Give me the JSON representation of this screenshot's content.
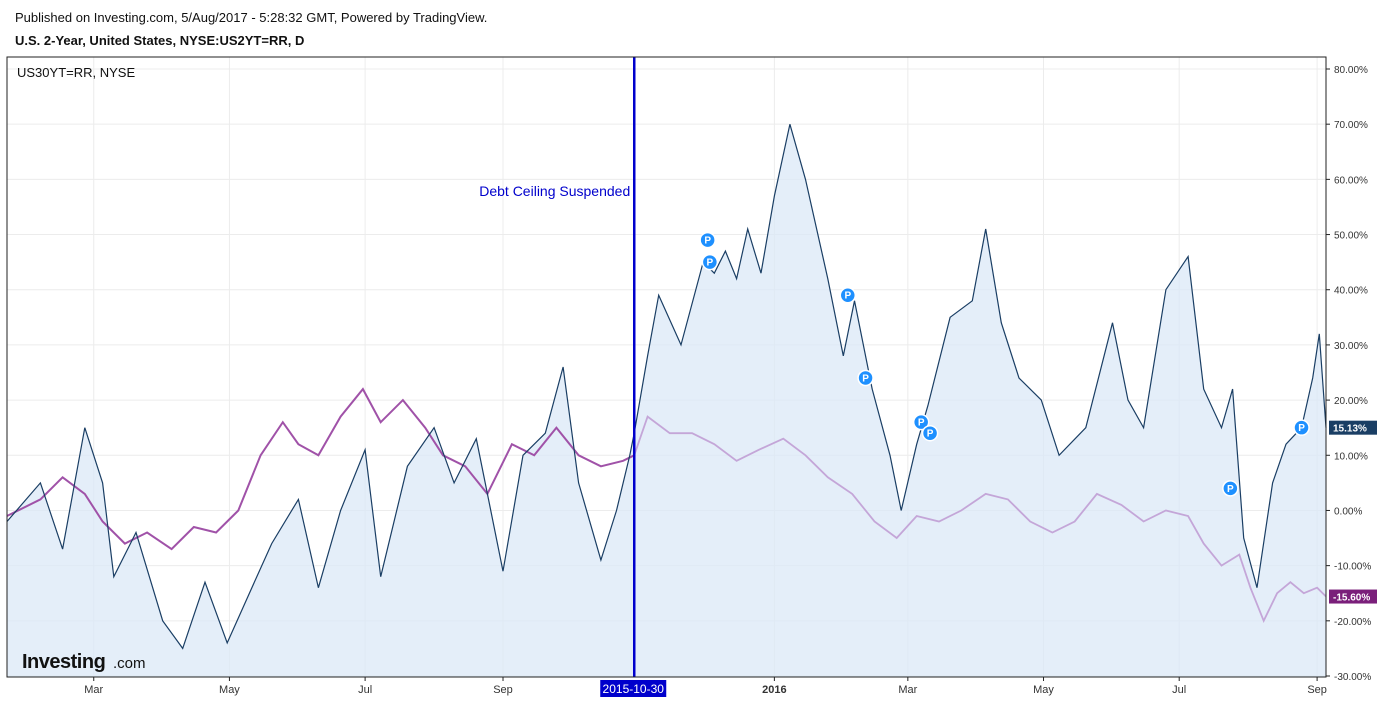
{
  "header": {
    "published": "Published on Investing.com, 5/Aug/2017 - 5:28:32 GMT, Powered by TradingView.",
    "title": "U.S. 2-Year, United States, NYSE:US2YT=RR, D"
  },
  "legend": {
    "compare_symbol": "US30YT=RR, NYSE"
  },
  "annotation": {
    "text": "Debt Ceiling Suspended",
    "date_label": "2015-10-30",
    "color": "#0000cc"
  },
  "logo": {
    "brand": "Investing",
    "suffix": ".com"
  },
  "colors": {
    "primary": "#1a3e64",
    "area": "#dbe8f7",
    "compare_before": "#a052a8",
    "compare_after": "#c4a6d8",
    "primary_badge": "#1a3e64",
    "compare_badge": "#7a1f7a",
    "marker": "#1e90ff"
  },
  "chart_data": {
    "type": "line",
    "y_unit": "%",
    "ylim": [
      -30,
      82
    ],
    "y_ticks": [
      "80.00%",
      "70.00%",
      "60.00%",
      "50.00%",
      "40.00%",
      "30.00%",
      "20.00%",
      "10.00%",
      "0.00%",
      "-10.00%",
      "-20.00%",
      "-30.00%"
    ],
    "y_tick_values": [
      80,
      70,
      60,
      50,
      40,
      30,
      20,
      10,
      0,
      -10,
      -20,
      -30
    ],
    "x_ticks": [
      "Mar",
      "May",
      "Jul",
      "Sep",
      "2016",
      "Mar",
      "May",
      "Jul",
      "Sep"
    ],
    "x_tick_dates": [
      "2015-03-01",
      "2015-05-01",
      "2015-07-01",
      "2015-09-01",
      "2016-01-01",
      "2016-03-01",
      "2016-05-01",
      "2016-07-01",
      "2016-09-01"
    ],
    "x_range": [
      "2015-01-21",
      "2016-09-05"
    ],
    "event_date": "2015-10-30",
    "series": [
      {
        "name": "U.S. 2-Year",
        "last_label": "15.13%",
        "points": [
          [
            "2015-01-21",
            -2
          ],
          [
            "2015-02-05",
            5
          ],
          [
            "2015-02-15",
            -7
          ],
          [
            "2015-02-25",
            15
          ],
          [
            "2015-03-05",
            5
          ],
          [
            "2015-03-10",
            -12
          ],
          [
            "2015-03-20",
            -4
          ],
          [
            "2015-04-01",
            -20
          ],
          [
            "2015-04-10",
            -25
          ],
          [
            "2015-04-20",
            -13
          ],
          [
            "2015-04-30",
            -24
          ],
          [
            "2015-05-10",
            -15
          ],
          [
            "2015-05-20",
            -6
          ],
          [
            "2015-06-01",
            2
          ],
          [
            "2015-06-10",
            -14
          ],
          [
            "2015-06-20",
            0
          ],
          [
            "2015-07-01",
            11
          ],
          [
            "2015-07-08",
            -12
          ],
          [
            "2015-07-20",
            8
          ],
          [
            "2015-08-01",
            15
          ],
          [
            "2015-08-10",
            5
          ],
          [
            "2015-08-20",
            13
          ],
          [
            "2015-09-01",
            -11
          ],
          [
            "2015-09-10",
            10
          ],
          [
            "2015-09-20",
            14
          ],
          [
            "2015-09-28",
            26
          ],
          [
            "2015-10-05",
            5
          ],
          [
            "2015-10-15",
            -9
          ],
          [
            "2015-10-22",
            0
          ],
          [
            "2015-10-28",
            10
          ],
          [
            "2015-10-30",
            14
          ],
          [
            "2015-11-05",
            28
          ],
          [
            "2015-11-10",
            39
          ],
          [
            "2015-11-20",
            30
          ],
          [
            "2015-11-30",
            45
          ],
          [
            "2015-12-05",
            43
          ],
          [
            "2015-12-10",
            47
          ],
          [
            "2015-12-15",
            42
          ],
          [
            "2015-12-20",
            51
          ],
          [
            "2015-12-26",
            43
          ],
          [
            "2016-01-01",
            57
          ],
          [
            "2016-01-08",
            70
          ],
          [
            "2016-01-15",
            60
          ],
          [
            "2016-01-25",
            42
          ],
          [
            "2016-02-01",
            28
          ],
          [
            "2016-02-06",
            38
          ],
          [
            "2016-02-14",
            22
          ],
          [
            "2016-02-22",
            10
          ],
          [
            "2016-02-27",
            0
          ],
          [
            "2016-03-05",
            12
          ],
          [
            "2016-03-10",
            19
          ],
          [
            "2016-03-20",
            35
          ],
          [
            "2016-03-30",
            38
          ],
          [
            "2016-04-05",
            51
          ],
          [
            "2016-04-12",
            34
          ],
          [
            "2016-04-20",
            24
          ],
          [
            "2016-04-30",
            20
          ],
          [
            "2016-05-08",
            10
          ],
          [
            "2016-05-20",
            15
          ],
          [
            "2016-06-01",
            34
          ],
          [
            "2016-06-08",
            20
          ],
          [
            "2016-06-15",
            15
          ],
          [
            "2016-06-25",
            40
          ],
          [
            "2016-07-05",
            46
          ],
          [
            "2016-07-12",
            22
          ],
          [
            "2016-07-20",
            15
          ],
          [
            "2016-07-25",
            22
          ],
          [
            "2016-07-30",
            -5
          ],
          [
            "2016-08-05",
            -14
          ],
          [
            "2016-08-12",
            5
          ],
          [
            "2016-08-18",
            12
          ],
          [
            "2016-08-25",
            15
          ],
          [
            "2016-08-30",
            24
          ],
          [
            "2016-09-02",
            32
          ],
          [
            "2016-09-05",
            15
          ]
        ]
      },
      {
        "name": "US30YT=RR, NYSE",
        "last_label": "-15.60%",
        "points": [
          [
            "2015-01-21",
            -1
          ],
          [
            "2015-02-05",
            2
          ],
          [
            "2015-02-15",
            6
          ],
          [
            "2015-02-25",
            3
          ],
          [
            "2015-03-05",
            -2
          ],
          [
            "2015-03-15",
            -6
          ],
          [
            "2015-03-25",
            -4
          ],
          [
            "2015-04-05",
            -7
          ],
          [
            "2015-04-15",
            -3
          ],
          [
            "2015-04-25",
            -4
          ],
          [
            "2015-05-05",
            0
          ],
          [
            "2015-05-15",
            10
          ],
          [
            "2015-05-25",
            16
          ],
          [
            "2015-06-01",
            12
          ],
          [
            "2015-06-10",
            10
          ],
          [
            "2015-06-20",
            17
          ],
          [
            "2015-06-30",
            22
          ],
          [
            "2015-07-08",
            16
          ],
          [
            "2015-07-18",
            20
          ],
          [
            "2015-07-28",
            15
          ],
          [
            "2015-08-05",
            10
          ],
          [
            "2015-08-15",
            8
          ],
          [
            "2015-08-25",
            3
          ],
          [
            "2015-09-05",
            12
          ],
          [
            "2015-09-15",
            10
          ],
          [
            "2015-09-25",
            15
          ],
          [
            "2015-10-05",
            10
          ],
          [
            "2015-10-15",
            8
          ],
          [
            "2015-10-25",
            9
          ],
          [
            "2015-10-30",
            10
          ],
          [
            "2015-11-05",
            17
          ],
          [
            "2015-11-15",
            14
          ],
          [
            "2015-11-25",
            14
          ],
          [
            "2015-12-05",
            12
          ],
          [
            "2015-12-15",
            9
          ],
          [
            "2015-12-25",
            11
          ],
          [
            "2016-01-05",
            13
          ],
          [
            "2016-01-15",
            10
          ],
          [
            "2016-01-25",
            6
          ],
          [
            "2016-02-05",
            3
          ],
          [
            "2016-02-15",
            -2
          ],
          [
            "2016-02-25",
            -5
          ],
          [
            "2016-03-05",
            -1
          ],
          [
            "2016-03-15",
            -2
          ],
          [
            "2016-03-25",
            0
          ],
          [
            "2016-04-05",
            3
          ],
          [
            "2016-04-15",
            2
          ],
          [
            "2016-04-25",
            -2
          ],
          [
            "2016-05-05",
            -4
          ],
          [
            "2016-05-15",
            -2
          ],
          [
            "2016-05-25",
            3
          ],
          [
            "2016-06-05",
            1
          ],
          [
            "2016-06-15",
            -2
          ],
          [
            "2016-06-25",
            0
          ],
          [
            "2016-07-05",
            -1
          ],
          [
            "2016-07-12",
            -6
          ],
          [
            "2016-07-20",
            -10
          ],
          [
            "2016-07-28",
            -8
          ],
          [
            "2016-08-02",
            -14
          ],
          [
            "2016-08-08",
            -20
          ],
          [
            "2016-08-14",
            -15
          ],
          [
            "2016-08-20",
            -13
          ],
          [
            "2016-08-26",
            -15
          ],
          [
            "2016-09-01",
            -14
          ],
          [
            "2016-09-05",
            -15.6
          ]
        ]
      }
    ],
    "markers": [
      {
        "date": "2015-12-02",
        "value": 49,
        "label": "P"
      },
      {
        "date": "2015-12-03",
        "value": 45,
        "label": "P"
      },
      {
        "date": "2016-02-03",
        "value": 39,
        "label": "P"
      },
      {
        "date": "2016-02-11",
        "value": 24,
        "label": "P"
      },
      {
        "date": "2016-03-07",
        "value": 16,
        "label": "P"
      },
      {
        "date": "2016-03-11",
        "value": 14,
        "label": "P"
      },
      {
        "date": "2016-07-24",
        "value": 4,
        "label": "P"
      },
      {
        "date": "2016-08-25",
        "value": 15,
        "label": "P"
      }
    ]
  }
}
